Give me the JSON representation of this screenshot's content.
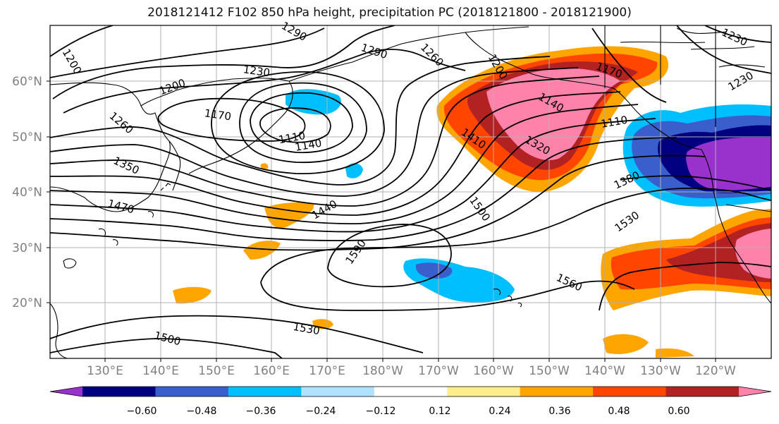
{
  "title": "2018121412 F102 850 hPa height, precipitation PC (2018121800 - 2018121900)",
  "lon_ticks": [
    "130°E",
    "140°E",
    "150°E",
    "160°E",
    "170°E",
    "180°W",
    "170°W",
    "160°W",
    "150°W",
    "140°W",
    "130°W",
    "120°W"
  ],
  "lat_ticks": [
    "60°N",
    "50°N",
    "40°N",
    "30°N",
    "20°N"
  ],
  "contour_labels": [
    "1200",
    "1200",
    "1230",
    "1290",
    "1290",
    "1260",
    "1200",
    "1170",
    "1170",
    "1260",
    "1110",
    "1140",
    "1350",
    "1140",
    "1110",
    "1410",
    "1320",
    "1380",
    "1440",
    "1470",
    "1500",
    "1530",
    "1590",
    "1560",
    "1530",
    "1500",
    "1230",
    "1230"
  ],
  "colorbar": {
    "colors": [
      "#9932cc",
      "#000080",
      "#3a5fcd",
      "#00bfff",
      "#b0e2ff",
      "#ffffff",
      "#ffec8b",
      "#ffa500",
      "#ff4500",
      "#b22222",
      "#ff82ab"
    ],
    "labels": [
      "−0.60",
      "−0.48",
      "−0.36",
      "−0.24",
      "−0.12",
      "0.12",
      "0.24",
      "0.36",
      "0.48",
      "0.60"
    ]
  }
}
